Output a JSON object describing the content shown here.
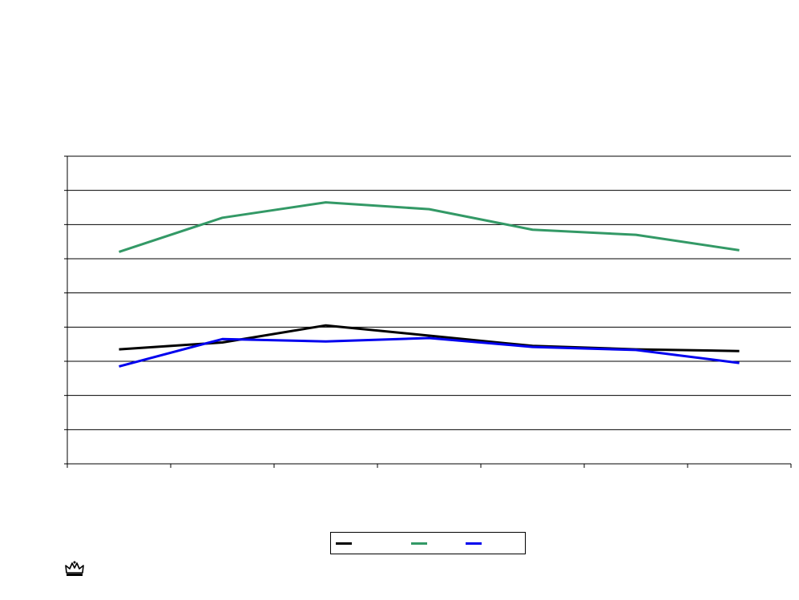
{
  "chart_data": {
    "type": "line",
    "title": "",
    "xlabel": "",
    "ylabel": "",
    "categories": [
      "",
      "",
      "",
      "",
      "",
      "",
      ""
    ],
    "ylim": [
      0,
      9
    ],
    "grid": true,
    "legend_position": "bottom-center",
    "series": [
      {
        "color": "#000000",
        "values": [
          3.35,
          3.55,
          4.05,
          3.75,
          3.45,
          3.35,
          3.3
        ]
      },
      {
        "color": "#339966",
        "values": [
          6.2,
          7.2,
          7.65,
          7.45,
          6.85,
          6.7,
          6.25
        ]
      },
      {
        "color": "#0000ee",
        "values": [
          2.85,
          3.65,
          3.58,
          3.68,
          3.42,
          3.33,
          2.95
        ]
      }
    ]
  },
  "logo": {
    "icon": "crown-icon"
  }
}
